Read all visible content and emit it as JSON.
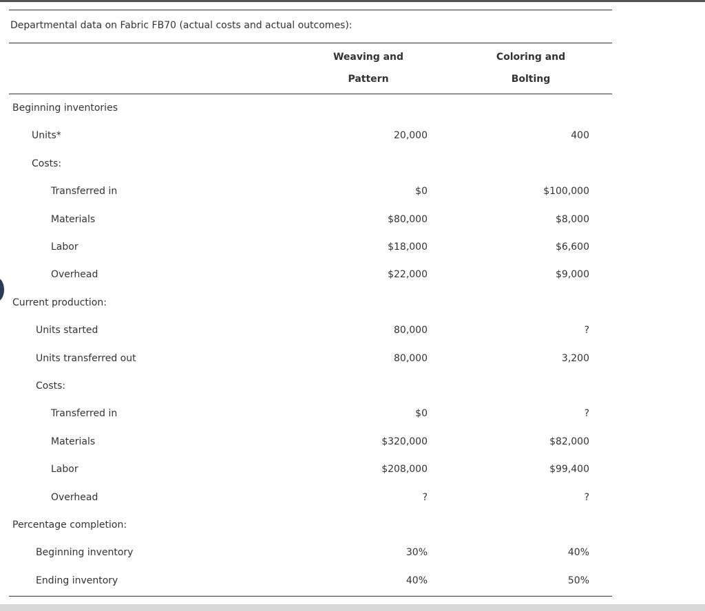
{
  "title": "Departmental data on Fabric FB70 (actual costs and actual outcomes):",
  "table": {
    "columns": [
      [
        "Weaving and",
        "Pattern"
      ],
      [
        "Coloring and",
        "Bolting"
      ]
    ],
    "rows": [
      {
        "label": "Beginning inventories"
      },
      {
        "label": "Units*",
        "values": [
          "20,000",
          "400"
        ]
      },
      {
        "label": "Costs:"
      },
      {
        "label": "Transferred in",
        "values": [
          "$0",
          "$100,000"
        ]
      },
      {
        "label": "Materials",
        "values": [
          "$80,000",
          "$8,000"
        ]
      },
      {
        "label": "Labor",
        "values": [
          "$18,000",
          "$6,600"
        ]
      },
      {
        "label": "Overhead",
        "values": [
          "$22,000",
          "$9,000"
        ]
      },
      {
        "label": "Current production:"
      },
      {
        "label": "Units started",
        "values": [
          "80,000",
          "?"
        ]
      },
      {
        "label": "Units transferred out",
        "values": [
          "80,000",
          "3,200"
        ]
      },
      {
        "label": "Costs:"
      },
      {
        "label": "Transferred in",
        "values": [
          "$0",
          "?"
        ]
      },
      {
        "label": "Materials",
        "values": [
          "$320,000",
          "$82,000"
        ]
      },
      {
        "label": "Labor",
        "values": [
          "$208,000",
          "$99,400"
        ]
      },
      {
        "label": "Overhead",
        "values": [
          "?",
          "?"
        ]
      },
      {
        "label": "Percentage completion:"
      },
      {
        "label": "Beginning inventory",
        "values": [
          "30%",
          "40%"
        ]
      },
      {
        "label": "Ending inventory",
        "values": [
          "40%",
          "50%"
        ]
      }
    ]
  }
}
